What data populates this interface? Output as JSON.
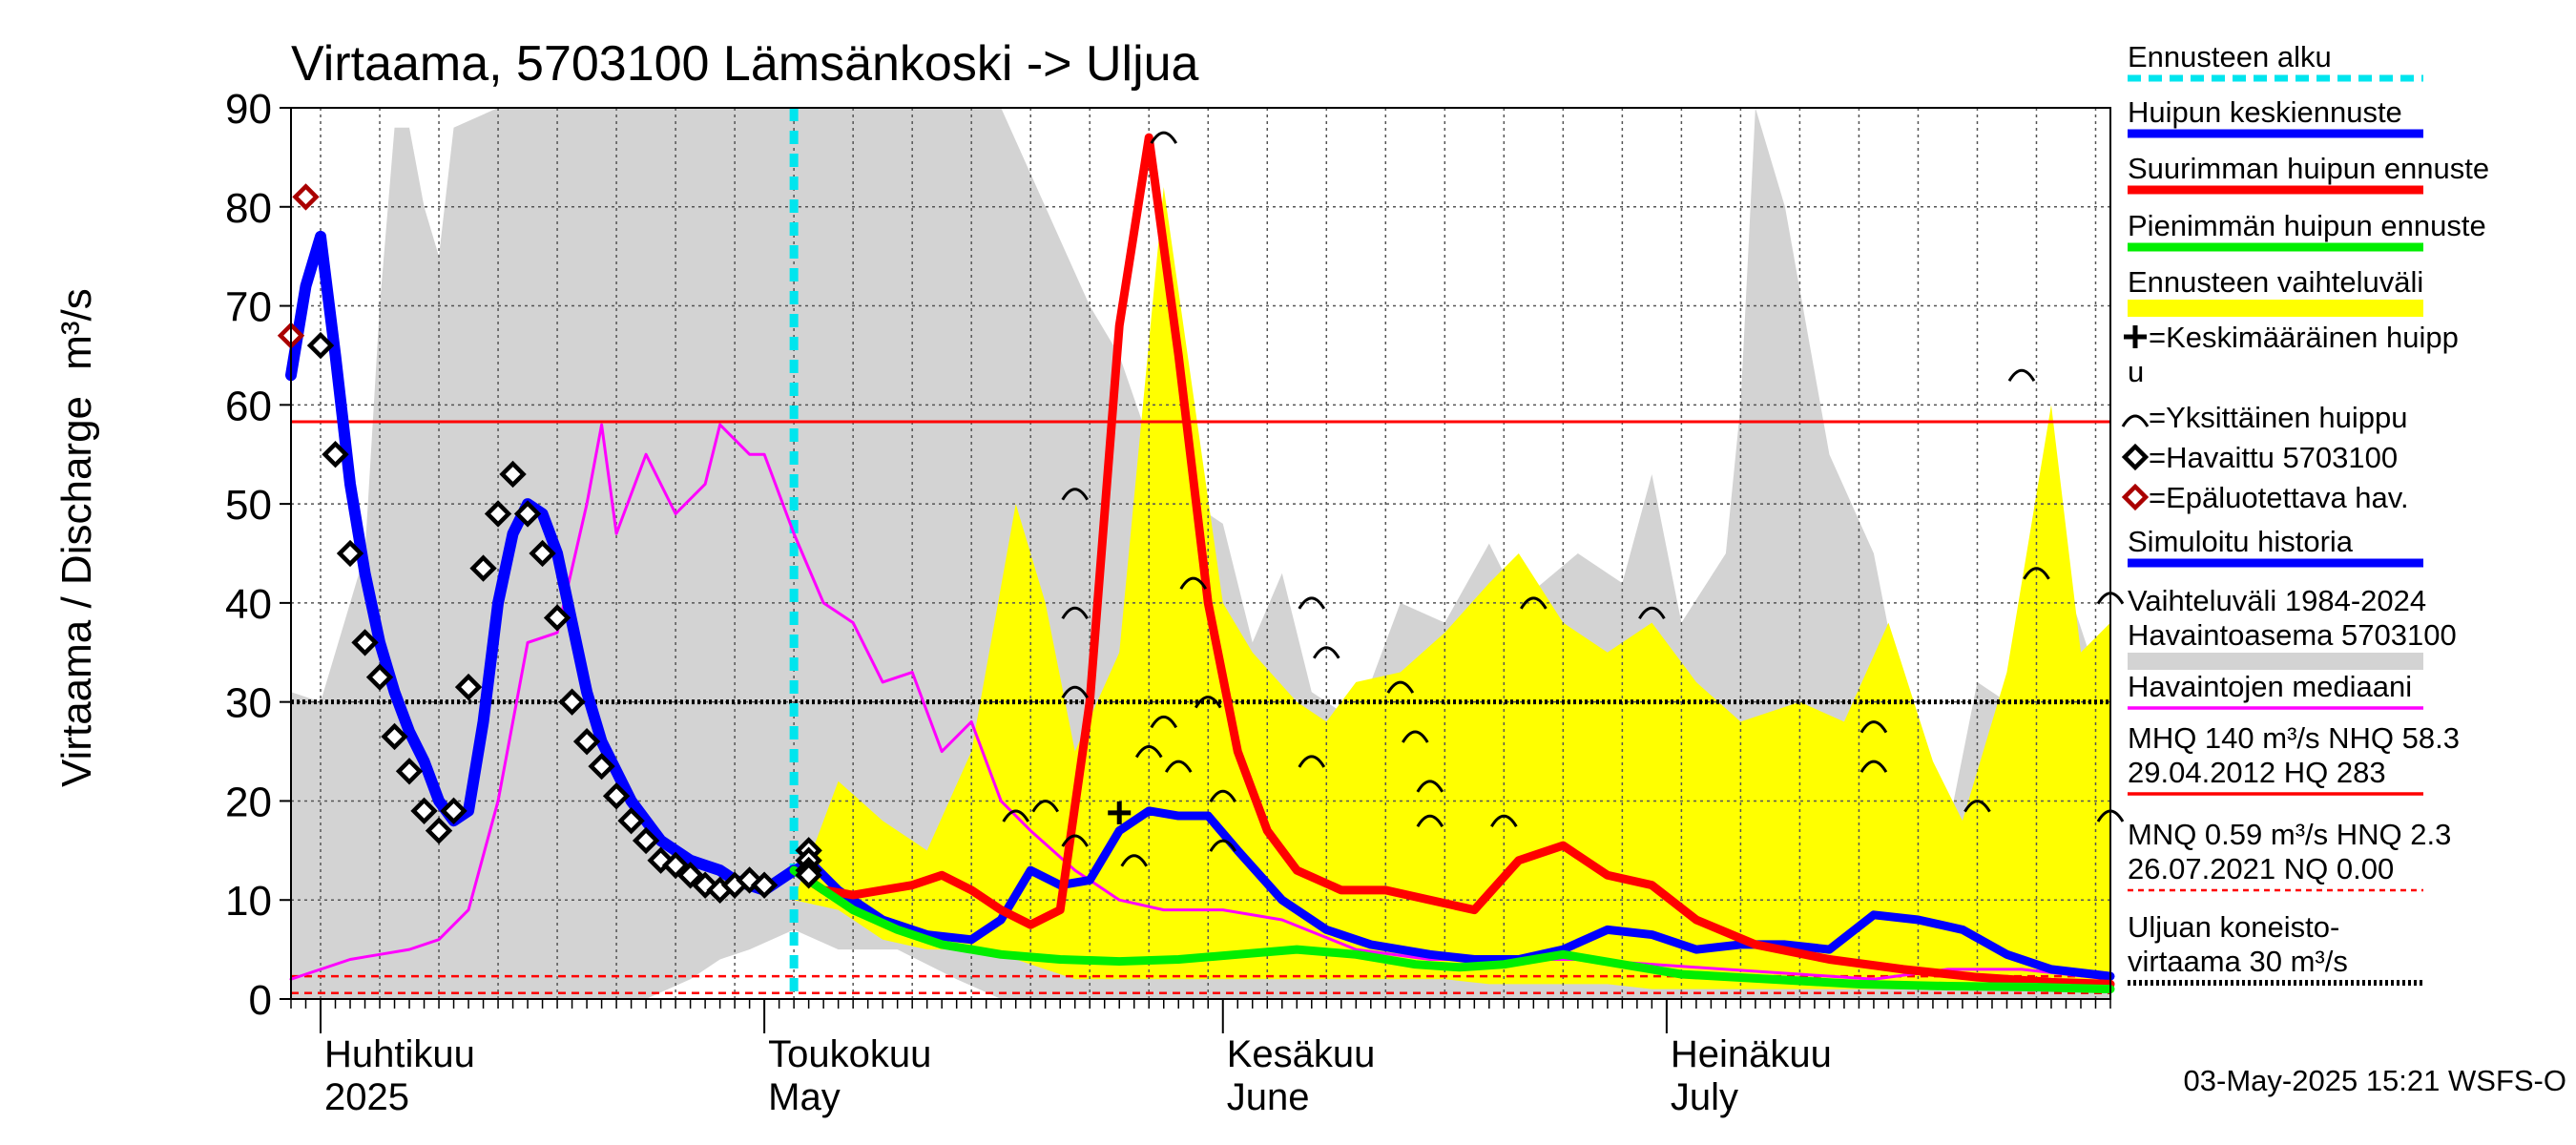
{
  "chart_data": {
    "type": "line",
    "title": "Virtaama, 5703100 Lämsänkoski -> Uljua",
    "ylabel": "Virtaama / Discharge",
    "yunit": "m³/s",
    "ylim": [
      0,
      90
    ],
    "yticks": [
      0,
      10,
      20,
      30,
      40,
      50,
      60,
      70,
      80,
      90
    ],
    "xlim": [
      "2025-03-30",
      "2025-07-31"
    ],
    "months": [
      {
        "date": "2025-04-01",
        "fi": "Huhtikuu",
        "en": "2025"
      },
      {
        "date": "2025-05-01",
        "fi": "Toukokuu",
        "en": "May"
      },
      {
        "date": "2025-06-01",
        "fi": "Kesäkuu",
        "en": "June"
      },
      {
        "date": "2025-07-01",
        "fi": "Heinäkuu",
        "en": "July"
      }
    ],
    "forecast_start": "2025-05-03",
    "grid": true,
    "legend_position": "right",
    "hlines": [
      {
        "name": "NHQ",
        "value": 58.3,
        "color": "#ff0000",
        "style": "solid"
      },
      {
        "name": "Havaintojen mediaani / Uljuan koneistovirtaama",
        "value": 30,
        "color": "#000000",
        "style": "dotted"
      },
      {
        "name": "HNQ",
        "value": 2.3,
        "color": "#ff0000",
        "style": "dashed"
      },
      {
        "name": "NQ",
        "value": 0.6,
        "color": "#ff0000",
        "style": "dashed"
      }
    ],
    "historical_range": {
      "x": [
        "2025-03-30",
        "2025-04-01",
        "2025-04-04",
        "2025-04-05",
        "2025-04-06",
        "2025-04-07",
        "2025-04-08",
        "2025-04-09",
        "2025-04-10",
        "2025-04-13",
        "2025-04-17",
        "2025-04-20",
        "2025-04-23",
        "2025-04-26",
        "2025-04-28",
        "2025-04-30",
        "2025-05-03",
        "2025-05-06",
        "2025-05-10",
        "2025-05-14",
        "2025-05-17",
        "2025-05-20",
        "2025-05-23",
        "2025-05-25",
        "2025-05-28",
        "2025-06-01",
        "2025-06-03",
        "2025-06-05",
        "2025-06-07",
        "2025-06-10",
        "2025-06-13",
        "2025-06-16",
        "2025-06-19",
        "2025-06-21",
        "2025-06-25",
        "2025-06-28",
        "2025-06-30",
        "2025-07-02",
        "2025-07-05",
        "2025-07-06",
        "2025-07-07",
        "2025-07-09",
        "2025-07-12",
        "2025-07-15",
        "2025-07-18",
        "2025-07-20",
        "2025-07-22",
        "2025-07-24",
        "2025-07-26",
        "2025-07-28",
        "2025-07-30",
        "2025-07-31"
      ],
      "high": [
        31,
        30,
        45,
        70,
        88,
        88,
        80,
        75,
        88,
        90,
        90,
        90,
        90,
        90,
        90,
        90,
        90,
        90,
        90,
        90,
        90,
        80,
        70,
        65,
        52,
        48,
        36,
        43,
        31,
        28,
        40,
        38,
        46,
        40,
        45,
        42,
        53,
        38,
        45,
        60,
        90,
        80,
        55,
        45,
        22,
        17,
        32,
        30,
        45,
        42,
        33,
        31
      ],
      "low": [
        0,
        0,
        0,
        0,
        0,
        0,
        0,
        0,
        0,
        0,
        0,
        0,
        0,
        2,
        4,
        5,
        7,
        5,
        5,
        2,
        0,
        0,
        0,
        0,
        0,
        0,
        0,
        0,
        0,
        0,
        0,
        0,
        0,
        0,
        0,
        0,
        0,
        0,
        0,
        0,
        0,
        0,
        0,
        0,
        0,
        0,
        0,
        0,
        0,
        0,
        0,
        0
      ]
    },
    "forecast_range": {
      "x": [
        "2025-05-03",
        "2025-05-06",
        "2025-05-09",
        "2025-05-12",
        "2025-05-15",
        "2025-05-18",
        "2025-05-20",
        "2025-05-22",
        "2025-05-25",
        "2025-05-28",
        "2025-06-01",
        "2025-06-03",
        "2025-06-06",
        "2025-06-08",
        "2025-06-10",
        "2025-06-13",
        "2025-06-16",
        "2025-06-19",
        "2025-06-21",
        "2025-06-24",
        "2025-06-27",
        "2025-06-30",
        "2025-07-03",
        "2025-07-06",
        "2025-07-10",
        "2025-07-13",
        "2025-07-16",
        "2025-07-19",
        "2025-07-21",
        "2025-07-24",
        "2025-07-27",
        "2025-07-29",
        "2025-07-31"
      ],
      "high": [
        10,
        22,
        18,
        15,
        25,
        50,
        40,
        25,
        35,
        82,
        40,
        35,
        30,
        28,
        32,
        33,
        37,
        42,
        45,
        38,
        35,
        38,
        32,
        28,
        30,
        28,
        38,
        24,
        18,
        33,
        60,
        35,
        38
      ],
      "low": [
        10,
        9,
        6,
        5,
        5,
        4,
        3,
        2,
        2,
        2,
        2,
        2,
        2,
        2,
        2,
        2,
        2,
        1.5,
        1.5,
        1.5,
        1.5,
        1,
        1,
        1,
        1,
        1,
        1,
        1,
        1,
        1,
        1,
        1,
        1
      ]
    },
    "series": [
      {
        "name": "Havaintojen mediaani",
        "color": "#ff00ff",
        "x": [
          "2025-03-30",
          "2025-04-01",
          "2025-04-03",
          "2025-04-05",
          "2025-04-07",
          "2025-04-09",
          "2025-04-11",
          "2025-04-13",
          "2025-04-15",
          "2025-04-17",
          "2025-04-19",
          "2025-04-20",
          "2025-04-21",
          "2025-04-23",
          "2025-04-25",
          "2025-04-27",
          "2025-04-28",
          "2025-04-30",
          "2025-05-01",
          "2025-05-03",
          "2025-05-05",
          "2025-05-07",
          "2025-05-09",
          "2025-05-11",
          "2025-05-13",
          "2025-05-15",
          "2025-05-17",
          "2025-05-19",
          "2025-05-22",
          "2025-05-25",
          "2025-05-28",
          "2025-06-01",
          "2025-06-05",
          "2025-06-10",
          "2025-06-15",
          "2025-06-20",
          "2025-06-25",
          "2025-06-30",
          "2025-07-05",
          "2025-07-10",
          "2025-07-15",
          "2025-07-20",
          "2025-07-25",
          "2025-07-31"
        ],
        "y": [
          2,
          3,
          4,
          4.5,
          5,
          6,
          9,
          20,
          36,
          37,
          50,
          58,
          47,
          55,
          49,
          52,
          58,
          55,
          55,
          47,
          40,
          38,
          32,
          33,
          25,
          28,
          20,
          17,
          13,
          10,
          9,
          9,
          8,
          5,
          4,
          4,
          4,
          3.5,
          3,
          2.5,
          2,
          3,
          3,
          2
        ]
      },
      {
        "name": "Simuloitu historia",
        "color": "#0000ff",
        "x": [
          "2025-03-30",
          "2025-03-31",
          "2025-04-01",
          "2025-04-02",
          "2025-04-03",
          "2025-04-04",
          "2025-04-05",
          "2025-04-06",
          "2025-04-07",
          "2025-04-08",
          "2025-04-09",
          "2025-04-10",
          "2025-04-11",
          "2025-04-12",
          "2025-04-13",
          "2025-04-14",
          "2025-04-15",
          "2025-04-16",
          "2025-04-17",
          "2025-04-18",
          "2025-04-19",
          "2025-04-20",
          "2025-04-21",
          "2025-04-22",
          "2025-04-23",
          "2025-04-24",
          "2025-04-25",
          "2025-04-26",
          "2025-04-27",
          "2025-04-28",
          "2025-04-29",
          "2025-04-30",
          "2025-05-01",
          "2025-05-02",
          "2025-05-03"
        ],
        "y": [
          63,
          72,
          77,
          65,
          52,
          43,
          36,
          31,
          27,
          24,
          20,
          18,
          19,
          28,
          40,
          47,
          50,
          49,
          45,
          38,
          31,
          26,
          23,
          20,
          18,
          16,
          15,
          14,
          13.5,
          13,
          12,
          11.5,
          11,
          12,
          13
        ]
      },
      {
        "name": "Huipun keskiennuste",
        "color": "#0000ff",
        "x": [
          "2025-05-03",
          "2025-05-04",
          "2025-05-06",
          "2025-05-09",
          "2025-05-12",
          "2025-05-15",
          "2025-05-17",
          "2025-05-19",
          "2025-05-21",
          "2025-05-23",
          "2025-05-25",
          "2025-05-27",
          "2025-05-29",
          "2025-05-31",
          "2025-06-02",
          "2025-06-05",
          "2025-06-08",
          "2025-06-11",
          "2025-06-15",
          "2025-06-18",
          "2025-06-21",
          "2025-06-24",
          "2025-06-27",
          "2025-06-30",
          "2025-07-03",
          "2025-07-06",
          "2025-07-09",
          "2025-07-12",
          "2025-07-15",
          "2025-07-18",
          "2025-07-21",
          "2025-07-24",
          "2025-07-27",
          "2025-07-31"
        ],
        "y": [
          13,
          14,
          11,
          8,
          6.5,
          6,
          8,
          13,
          11.5,
          12,
          17,
          19,
          18.5,
          18.5,
          15,
          10,
          7,
          5.5,
          4.5,
          4,
          4,
          5,
          7,
          6.5,
          5,
          5.5,
          5.5,
          5,
          8.5,
          8,
          7,
          4.5,
          3,
          2.3
        ]
      },
      {
        "name": "Suurimman huipun ennuste",
        "color": "#ff0000",
        "x": [
          "2025-05-03",
          "2025-05-05",
          "2025-05-07",
          "2025-05-09",
          "2025-05-11",
          "2025-05-13",
          "2025-05-15",
          "2025-05-17",
          "2025-05-19",
          "2025-05-21",
          "2025-05-23",
          "2025-05-25",
          "2025-05-27",
          "2025-05-29",
          "2025-05-31",
          "2025-06-02",
          "2025-06-04",
          "2025-06-06",
          "2025-06-09",
          "2025-06-12",
          "2025-06-15",
          "2025-06-18",
          "2025-06-21",
          "2025-06-24",
          "2025-06-27",
          "2025-06-30",
          "2025-07-03",
          "2025-07-07",
          "2025-07-12",
          "2025-07-17",
          "2025-07-22",
          "2025-07-27",
          "2025-07-31"
        ],
        "y": [
          13,
          11,
          10.5,
          11,
          11.5,
          12.5,
          11,
          9,
          7.5,
          9,
          30,
          68,
          87,
          65,
          40,
          25,
          17,
          13,
          11,
          11,
          10,
          9,
          14,
          15.5,
          12.5,
          11.5,
          8,
          5.5,
          4,
          3,
          2.2,
          1.7,
          1.5
        ]
      },
      {
        "name": "Pienimmän huipun ennuste",
        "color": "#00ee00",
        "x": [
          "2025-05-03",
          "2025-05-05",
          "2025-05-07",
          "2025-05-10",
          "2025-05-13",
          "2025-05-17",
          "2025-05-21",
          "2025-05-25",
          "2025-05-29",
          "2025-06-02",
          "2025-06-06",
          "2025-06-10",
          "2025-06-14",
          "2025-06-17",
          "2025-06-20",
          "2025-06-24",
          "2025-06-28",
          "2025-07-02",
          "2025-07-08",
          "2025-07-14",
          "2025-07-20",
          "2025-07-26",
          "2025-07-31"
        ],
        "y": [
          13,
          11,
          9,
          7,
          5.5,
          4.5,
          4,
          3.8,
          4,
          4.5,
          5,
          4.5,
          3.5,
          3.2,
          3.5,
          4.5,
          3.5,
          2.5,
          2,
          1.5,
          1.3,
          1.2,
          1
        ]
      }
    ],
    "observed": {
      "name": "Havaittu 5703100",
      "x": [
        "2025-03-31",
        "2025-04-01",
        "2025-04-02",
        "2025-04-03",
        "2025-04-04",
        "2025-04-05",
        "2025-04-06",
        "2025-04-07",
        "2025-04-08",
        "2025-04-09",
        "2025-04-10",
        "2025-04-11",
        "2025-04-12",
        "2025-04-13",
        "2025-04-14",
        "2025-04-15",
        "2025-04-16",
        "2025-04-17",
        "2025-04-18",
        "2025-04-19",
        "2025-04-20",
        "2025-04-21",
        "2025-04-22",
        "2025-04-23",
        "2025-04-24",
        "2025-04-25",
        "2025-04-26",
        "2025-04-27",
        "2025-04-28",
        "2025-04-29",
        "2025-04-30",
        "2025-05-01",
        "2025-05-04",
        "2025-05-04",
        "2025-05-04",
        "2025-05-04"
      ],
      "y": [
        null,
        66,
        55,
        45,
        36,
        32.5,
        26.5,
        23,
        19,
        17,
        19,
        31.5,
        43.5,
        49,
        53,
        49,
        45,
        38.5,
        30,
        26,
        23.5,
        20.5,
        18,
        16,
        14,
        13.5,
        12.5,
        11.5,
        11,
        11.5,
        12,
        11.5,
        15,
        14,
        13,
        12.5
      ]
    },
    "unreliable": {
      "name": "Epäluotettava hav.",
      "x": [
        "2025-03-30",
        "2025-03-31"
      ],
      "y": [
        67,
        81
      ]
    },
    "mean_peak": {
      "x": "2025-05-25",
      "y": 18.8
    },
    "individual_peaks": {
      "x": [
        "2025-05-18",
        "2025-05-20",
        "2025-05-22",
        "2025-05-22",
        "2025-05-22",
        "2025-05-22",
        "2025-05-26",
        "2025-05-27",
        "2025-05-28",
        "2025-05-28",
        "2025-05-29",
        "2025-05-30",
        "2025-05-31",
        "2025-06-01",
        "2025-06-01",
        "2025-06-07",
        "2025-06-07",
        "2025-06-08",
        "2025-06-13",
        "2025-06-14",
        "2025-06-15",
        "2025-06-15",
        "2025-06-20",
        "2025-06-22",
        "2025-06-30",
        "2025-07-15",
        "2025-07-15",
        "2025-07-22",
        "2025-07-25",
        "2025-07-26",
        "2025-07-31",
        "2025-07-31"
      ],
      "y": [
        18.5,
        19.5,
        51,
        31,
        16,
        39,
        14,
        25,
        87,
        28,
        23.5,
        42,
        30,
        20.5,
        15.5,
        40,
        24,
        35,
        31.5,
        26.5,
        21.5,
        18,
        18,
        40,
        39,
        27.5,
        23.5,
        19.5,
        63,
        43,
        40.5,
        18.5
      ]
    },
    "legend": [
      {
        "label": "Ennusteen alku",
        "kind": "dash",
        "color": "#00e5ee"
      },
      {
        "label": "Huipun keskiennuste",
        "kind": "line",
        "color": "#0000ff"
      },
      {
        "label": "Suurimman huipun ennuste",
        "kind": "line",
        "color": "#ff0000"
      },
      {
        "label": "Pienimmän huipun ennuste",
        "kind": "line",
        "color": "#00ee00"
      },
      {
        "label": "Ennusteen vaihteluväli",
        "kind": "band",
        "color": "#ffff00"
      },
      {
        "label": "=Keskimääräinen huipp",
        "label2": "u",
        "kind": "plus",
        "color": "#000000"
      },
      {
        "label": "=Yksittäinen huippu",
        "kind": "arc",
        "color": "#000000"
      },
      {
        "label": "=Havaittu 5703100",
        "kind": "diamond",
        "color": "#000000"
      },
      {
        "label": "=Epäluotettava hav.",
        "kind": "diamond",
        "color": "#aa0000"
      },
      {
        "label": "Simuloitu historia",
        "kind": "line",
        "color": "#0000ff"
      },
      {
        "label": "Vaihteluväli 1984-2024",
        "label2": " Havaintoasema 5703100",
        "kind": "band",
        "color": "#d3d3d3"
      },
      {
        "label": "Havaintojen mediaani",
        "kind": "thin",
        "color": "#ff00ff"
      },
      {
        "label": "MHQ  140 m³/s NHQ 58.3",
        "label2": "29.04.2012 HQ  283",
        "kind": "thin",
        "color": "#ff0000"
      },
      {
        "label": "MNQ 0.59 m³/s HNQ  2.3",
        "label2": "26.07.2021 NQ 0.00",
        "kind": "dashed",
        "color": "#ff0000"
      },
      {
        "label": "Uljuan koneisto-",
        "label2": "virtaama 30 m³/s",
        "kind": "dotted",
        "color": "#000000"
      }
    ],
    "timestamp": "03-May-2025 15:21 WSFS-O"
  }
}
